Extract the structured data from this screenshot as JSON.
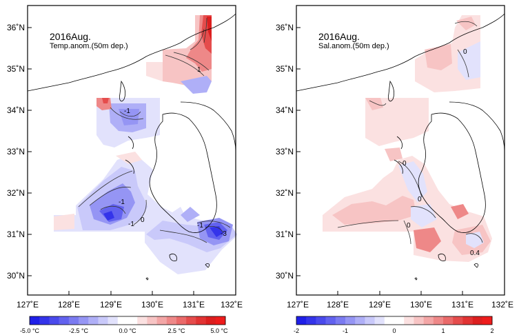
{
  "panels": [
    {
      "id": "temp",
      "title": "2016Aug.",
      "subtitle": "Temp.anom.(50m dep.)",
      "contour_labels": [
        "-1",
        "-1",
        "-1",
        "-1",
        "0",
        "1",
        "-3"
      ],
      "colorbar": {
        "min": -5.0,
        "max": 5.0,
        "tick_labels": [
          "-5.0 °C",
          "-2.5 °C",
          "0.0 °C",
          "2.5 °C",
          "5.0 °C"
        ],
        "colors": [
          "#1f1fe8",
          "#3434ea",
          "#4a4aec",
          "#6262ef",
          "#7b7bf1",
          "#9595f4",
          "#afaff7",
          "#c9c9fa",
          "#e2e2fc",
          "#ffffff",
          "#ffffff",
          "#fbe1e1",
          "#f7c4c4",
          "#f3a6a6",
          "#ee8888",
          "#ea6a6a",
          "#e54c4c",
          "#e13333",
          "#dc1f1f",
          "#ee1c1c"
        ]
      }
    },
    {
      "id": "sal",
      "title": "2016Aug.",
      "subtitle": "Sal.anom.(50m dep.)",
      "contour_labels": [
        "0",
        "0",
        "0",
        "0",
        "0.4"
      ],
      "colorbar": {
        "min": -2,
        "max": 2,
        "tick_labels": [
          "-2",
          "-1",
          "0",
          "1",
          "2"
        ],
        "colors": [
          "#1f1fe8",
          "#3434ea",
          "#4a4aec",
          "#6262ef",
          "#7b7bf1",
          "#9595f4",
          "#afaff7",
          "#c9c9fa",
          "#e2e2fc",
          "#ffffff",
          "#ffffff",
          "#fbe1e1",
          "#f7c4c4",
          "#f3a6a6",
          "#ee8888",
          "#ea6a6a",
          "#e54c4c",
          "#e13333",
          "#dc1f1f",
          "#ee1c1c"
        ]
      }
    }
  ],
  "axes": {
    "x_ticks": [
      "127˚E",
      "128˚E",
      "129˚E",
      "130˚E",
      "131˚E",
      "132˚E"
    ],
    "y_ticks": [
      "36˚N",
      "35˚N",
      "34˚N",
      "33˚N",
      "32˚N",
      "31˚N",
      "30˚N"
    ]
  }
}
